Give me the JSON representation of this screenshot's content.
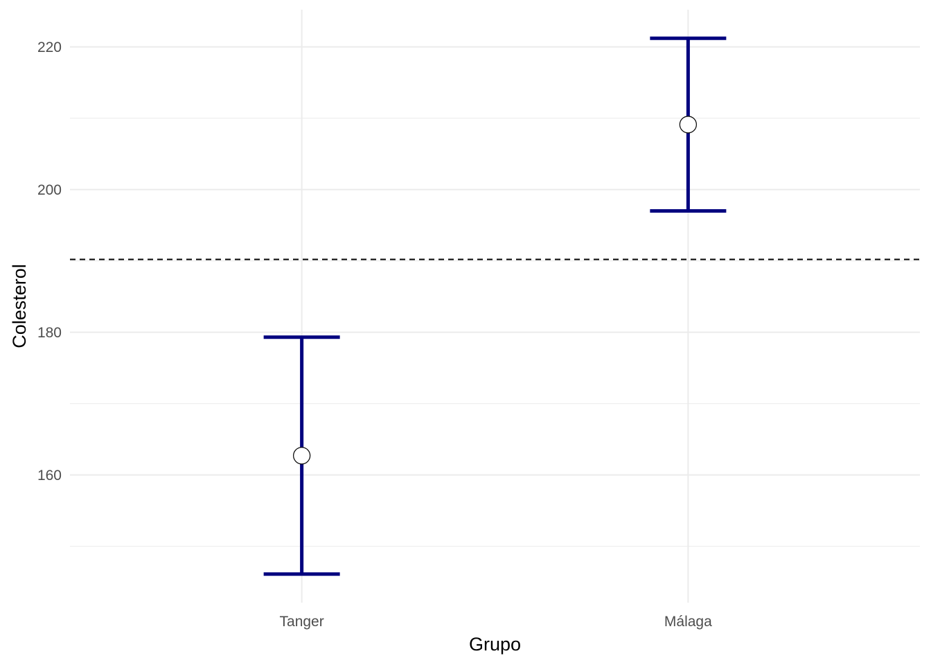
{
  "chart_data": {
    "type": "errorbar",
    "categories": [
      "Tanger",
      "Málaga"
    ],
    "series": [
      {
        "means": [
          162.7,
          209.1
        ],
        "lower": [
          146.1,
          197.0
        ],
        "upper": [
          179.3,
          221.2
        ]
      }
    ],
    "reference_line": 190.2,
    "xlabel": "Grupo",
    "ylabel": "Colesterol",
    "ylim": [
      142.1,
      225.2
    ],
    "yticks": [
      160,
      180,
      200,
      220
    ],
    "y_minor_ticks": [
      150,
      170,
      190,
      210
    ],
    "grid": true,
    "colors": {
      "errorbar": "#00007F",
      "point_fill": "#FFFFFF",
      "point_stroke": "#000000",
      "reference_line": "#000000",
      "grid": "#EBEBEB"
    }
  }
}
